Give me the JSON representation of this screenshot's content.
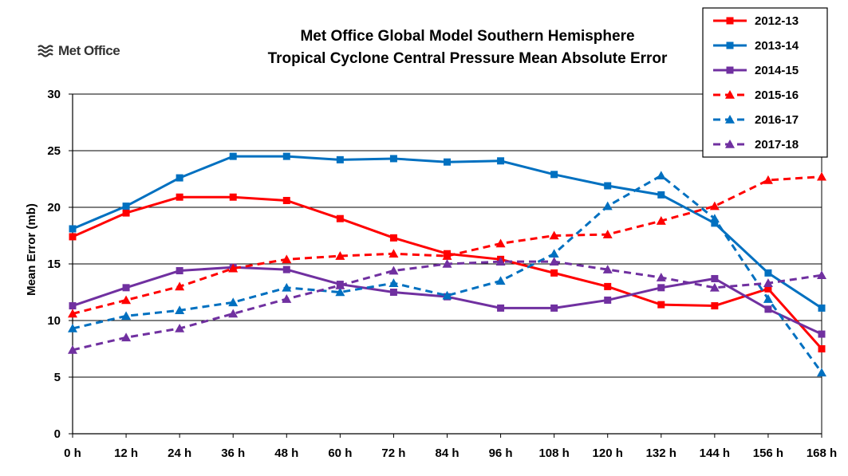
{
  "logo": {
    "text": "Met Office",
    "icon": "met-office-wave-icon",
    "color": "#333333"
  },
  "chart_data": {
    "type": "line",
    "title": "Met Office Global Model Southern Hemisphere",
    "subtitle": "Tropical Cyclone Central Pressure Mean Absolute Error",
    "xlabel": "",
    "ylabel": "Mean Error (mb)",
    "ylim": [
      0,
      30
    ],
    "yticks": [
      0,
      5,
      10,
      15,
      20,
      25,
      30
    ],
    "grid": "horizontal",
    "legend_position": "top-right",
    "categories": [
      "0 h",
      "12 h",
      "24 h",
      "36 h",
      "48 h",
      "60 h",
      "72 h",
      "84 h",
      "96 h",
      "108 h",
      "120 h",
      "132 h",
      "144 h",
      "156 h",
      "168 h"
    ],
    "series": [
      {
        "name": "2012-13",
        "color": "#ff0000",
        "marker": "square",
        "dash": "solid",
        "values": [
          17.4,
          19.5,
          20.9,
          20.9,
          20.6,
          19.0,
          17.3,
          15.9,
          15.4,
          14.2,
          13.0,
          11.4,
          11.3,
          12.8,
          7.5
        ]
      },
      {
        "name": "2013-14",
        "color": "#0070c0",
        "marker": "square",
        "dash": "solid",
        "values": [
          18.1,
          20.1,
          22.6,
          24.5,
          24.5,
          24.2,
          24.3,
          24.0,
          24.1,
          22.9,
          21.9,
          21.1,
          18.6,
          14.2,
          11.1
        ]
      },
      {
        "name": "2014-15",
        "color": "#7030a0",
        "marker": "square",
        "dash": "solid",
        "values": [
          11.3,
          12.9,
          14.4,
          14.7,
          14.5,
          13.2,
          12.5,
          12.1,
          11.1,
          11.1,
          11.8,
          12.9,
          13.7,
          11.0,
          8.8
        ]
      },
      {
        "name": "2015-16",
        "color": "#ff0000",
        "marker": "triangle",
        "dash": "dashed",
        "values": [
          10.6,
          11.8,
          13.0,
          14.6,
          15.4,
          15.7,
          15.9,
          15.7,
          16.8,
          17.5,
          17.6,
          18.8,
          20.1,
          22.4,
          22.7
        ]
      },
      {
        "name": "2016-17",
        "color": "#0070c0",
        "marker": "triangle",
        "dash": "dashed",
        "values": [
          9.3,
          10.4,
          10.9,
          11.6,
          12.9,
          12.5,
          13.3,
          12.2,
          13.5,
          15.9,
          20.1,
          22.8,
          19.0,
          11.9,
          5.4
        ]
      },
      {
        "name": "2017-18",
        "color": "#7030a0",
        "marker": "triangle",
        "dash": "dashed",
        "values": [
          7.4,
          8.5,
          9.3,
          10.6,
          11.9,
          13.1,
          14.4,
          15.0,
          15.2,
          15.2,
          14.5,
          13.8,
          12.9,
          13.3,
          14.0
        ]
      }
    ]
  }
}
